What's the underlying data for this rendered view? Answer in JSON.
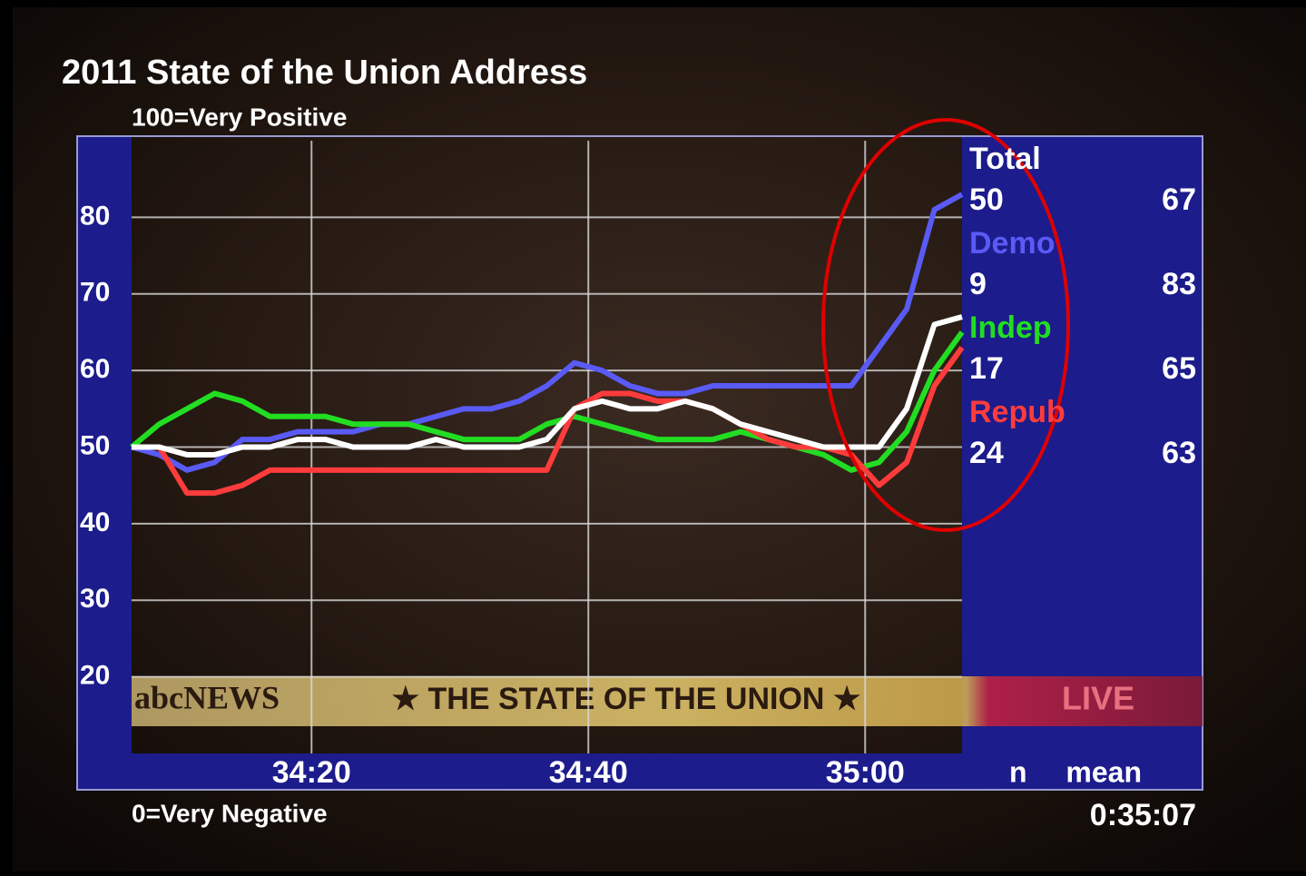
{
  "chart_data": {
    "type": "line",
    "title": "2011 State of the Union Address",
    "top_note": "100=Very Positive",
    "bottom_note": "0=Very Negative",
    "clock": "0:35:07",
    "banner": {
      "brand": "abcNEWS",
      "show": "★ THE STATE OF THE UNION ★",
      "live": "LIVE"
    },
    "legend_header": {
      "n": "n",
      "mean": "mean"
    },
    "x": [
      2047,
      2049,
      2051,
      2053,
      2055,
      2057,
      2059,
      2061,
      2063,
      2065,
      2067,
      2069,
      2071,
      2073,
      2075,
      2077,
      2079,
      2081,
      2083,
      2085,
      2087,
      2089,
      2091,
      2093,
      2095,
      2097,
      2099,
      2101,
      2103,
      2105,
      2107
    ],
    "xlim": [
      2047,
      2107
    ],
    "xticks": [
      {
        "value": 2060,
        "label": "34:20"
      },
      {
        "value": 2080,
        "label": "34:40"
      },
      {
        "value": 2100,
        "label": "35:00"
      }
    ],
    "ylim": [
      10,
      90
    ],
    "yticks": [
      20,
      30,
      40,
      50,
      60,
      70,
      80
    ],
    "grid": true,
    "series": [
      {
        "name": "Demo",
        "color": "#5a5af5",
        "n": 9,
        "mean": 83,
        "values": [
          50,
          49,
          47,
          48,
          51,
          51,
          52,
          52,
          52,
          53,
          53,
          54,
          55,
          55,
          56,
          58,
          61,
          60,
          58,
          57,
          57,
          58,
          58,
          58,
          58,
          58,
          58,
          63,
          68,
          81,
          83
        ]
      },
      {
        "name": "Indep",
        "color": "#22dd22",
        "n": 17,
        "mean": 65,
        "values": [
          50,
          53,
          55,
          57,
          56,
          54,
          54,
          54,
          53,
          53,
          53,
          52,
          51,
          51,
          51,
          53,
          54,
          53,
          52,
          51,
          51,
          51,
          52,
          51,
          50,
          49,
          47,
          48,
          52,
          60,
          65
        ]
      },
      {
        "name": "Repub",
        "color": "#ff3c3c",
        "n": 24,
        "mean": 63,
        "values": [
          50,
          50,
          44,
          44,
          45,
          47,
          47,
          47,
          47,
          47,
          47,
          47,
          47,
          47,
          47,
          47,
          55,
          57,
          57,
          56,
          56,
          55,
          53,
          51,
          50,
          50,
          49,
          45,
          48,
          58,
          63
        ]
      },
      {
        "name": "Total",
        "color": "#ffffff",
        "n": 50,
        "mean": 67,
        "values": [
          50,
          50,
          49,
          49,
          50,
          50,
          51,
          51,
          50,
          50,
          50,
          51,
          50,
          50,
          50,
          51,
          55,
          56,
          55,
          55,
          56,
          55,
          53,
          52,
          51,
          50,
          50,
          50,
          55,
          66,
          67
        ]
      }
    ]
  }
}
